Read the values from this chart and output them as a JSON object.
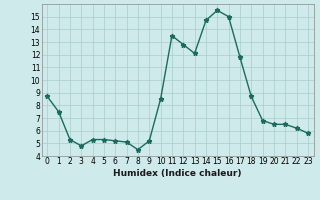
{
  "x": [
    0,
    1,
    2,
    3,
    4,
    5,
    6,
    7,
    8,
    9,
    10,
    11,
    12,
    13,
    14,
    15,
    16,
    17,
    18,
    19,
    20,
    21,
    22,
    23
  ],
  "y": [
    8.7,
    7.5,
    5.3,
    4.8,
    5.3,
    5.3,
    5.2,
    5.1,
    4.5,
    5.2,
    8.5,
    13.5,
    12.8,
    12.1,
    14.7,
    15.5,
    15.0,
    11.8,
    8.7,
    6.8,
    6.5,
    6.5,
    6.2,
    5.8
  ],
  "line_color": "#1a6b5e",
  "marker": "*",
  "markersize": 3.5,
  "linewidth": 1.0,
  "xlabel": "Humidex (Indice chaleur)",
  "background_color": "#ceeaea",
  "grid_color": "#a8cccc",
  "xlim": [
    -0.5,
    23.5
  ],
  "ylim": [
    4,
    16
  ],
  "yticks": [
    4,
    5,
    6,
    7,
    8,
    9,
    10,
    11,
    12,
    13,
    14,
    15
  ],
  "xticks": [
    0,
    1,
    2,
    3,
    4,
    5,
    6,
    7,
    8,
    9,
    10,
    11,
    12,
    13,
    14,
    15,
    16,
    17,
    18,
    19,
    20,
    21,
    22,
    23
  ],
  "tick_fontsize": 5.5,
  "xlabel_fontsize": 6.5
}
